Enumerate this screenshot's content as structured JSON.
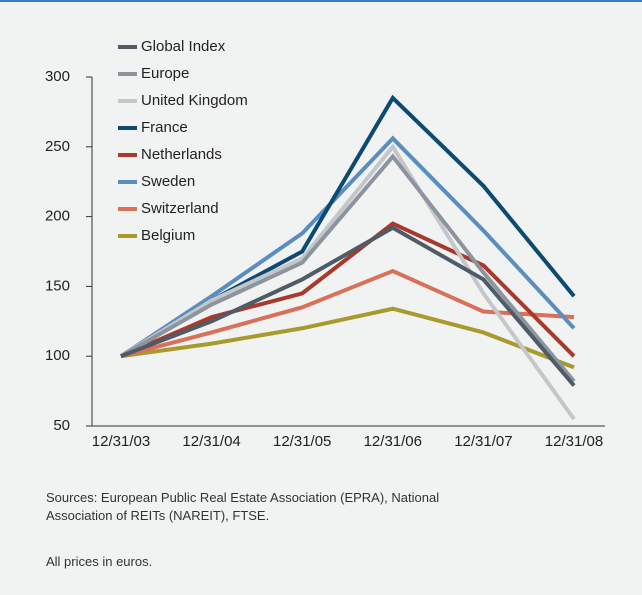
{
  "chart_data": {
    "type": "line",
    "categories": [
      "12/31/03",
      "12/31/04",
      "12/31/05",
      "12/31/06",
      "12/31/07",
      "12/31/08"
    ],
    "series": [
      {
        "name": "Global Index",
        "color": "#4f5b66",
        "values": [
          100,
          125,
          155,
          192,
          155,
          79
        ]
      },
      {
        "name": "Europe",
        "color": "#8c959e",
        "values": [
          100,
          137,
          167,
          243,
          160,
          82
        ]
      },
      {
        "name": "United Kingdom",
        "color": "#c4c7ca",
        "values": [
          100,
          140,
          170,
          250,
          145,
          55
        ]
      },
      {
        "name": "France",
        "color": "#0b4a72",
        "values": [
          100,
          140,
          175,
          285,
          222,
          143
        ]
      },
      {
        "name": "Netherlands",
        "color": "#a8392b",
        "values": [
          100,
          128,
          145,
          195,
          165,
          100
        ]
      },
      {
        "name": "Sweden",
        "color": "#5b8ec0",
        "values": [
          100,
          143,
          188,
          256,
          190,
          120
        ]
      },
      {
        "name": "Switzerland",
        "color": "#d9705a",
        "values": [
          100,
          117,
          135,
          161,
          132,
          128
        ]
      },
      {
        "name": "Belgium",
        "color": "#a89a2c",
        "values": [
          100,
          109,
          120,
          134,
          117,
          92
        ]
      }
    ],
    "ylim": [
      50,
      300
    ],
    "yticks": [
      50,
      100,
      150,
      200,
      250,
      300
    ],
    "grid": false,
    "sources": "Sources: European Public Real Estate Association (EPRA), National Association of REITs (NAREIT), FTSE.",
    "note": "All prices in euros."
  }
}
